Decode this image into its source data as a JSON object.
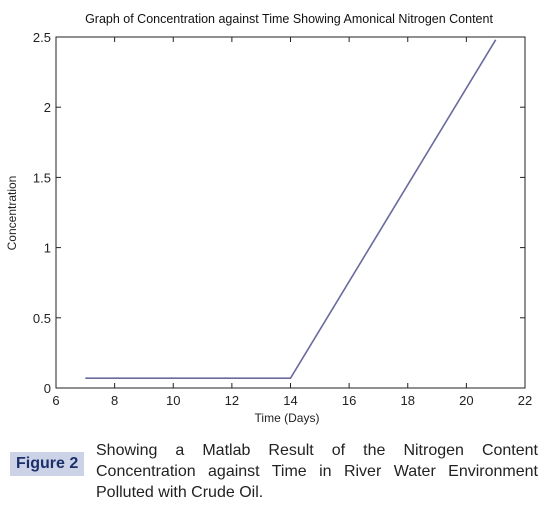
{
  "chart_data": {
    "type": "line",
    "title": "Graph of Concentration against Time Showing Amonical Nitrogen Content",
    "xlabel": "Time (Days)",
    "ylabel": "Concentration",
    "xlim": [
      6,
      22
    ],
    "ylim": [
      0,
      2.5
    ],
    "xticks": [
      6,
      8,
      10,
      12,
      14,
      16,
      18,
      20,
      22
    ],
    "yticks": [
      0,
      0.5,
      1,
      1.5,
      2,
      2.5
    ],
    "xtick_labels": [
      "6",
      "8",
      "10",
      "12",
      "14",
      "16",
      "18",
      "20",
      "22"
    ],
    "ytick_labels": [
      "0",
      "0.5",
      "1",
      "1.5",
      "2",
      "2.5"
    ],
    "grid": false,
    "series": [
      {
        "x": [
          7,
          14,
          21
        ],
        "y": [
          0.07,
          0.07,
          2.48
        ]
      }
    ],
    "colors": {
      "line": "#6a6a9e",
      "axis": "#222222"
    }
  },
  "caption": {
    "label": "Figure 2",
    "text": "Showing a Matlab Result of the Nitrogen Content Concentration against Time in River Water Environment Polluted with Crude Oil."
  }
}
